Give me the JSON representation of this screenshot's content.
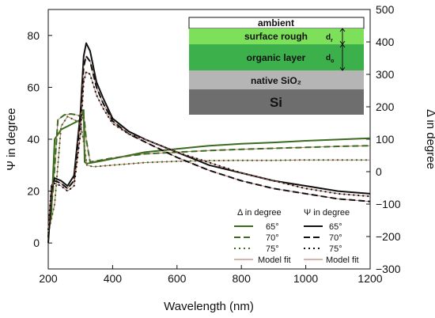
{
  "chart_data": {
    "type": "line",
    "xlabel": "Wavelength (nm)",
    "ylabel_left": "Ψ in degree",
    "ylabel_right": "Δ in degree",
    "xlim": [
      200,
      1200
    ],
    "ylim_left": [
      -10,
      90
    ],
    "ylim_right": [
      -300,
      500
    ],
    "x_ticks": [
      "200",
      "400",
      "600",
      "800",
      "1000",
      "1200"
    ],
    "y_left_ticks": [
      "0",
      "20",
      "40",
      "60",
      "80"
    ],
    "y_right_ticks": [
      "-300",
      "-200",
      "-100",
      "0",
      "100",
      "200",
      "300",
      "400",
      "500"
    ],
    "series": [
      {
        "name": "65°",
        "group": "Δ in degree",
        "axis": "right",
        "style": "solid",
        "color": "#3a6b1f",
        "x": [
          200,
          210,
          220,
          240,
          260,
          280,
          300,
          310,
          313,
          320,
          350,
          400,
          500,
          600,
          700,
          800,
          900,
          1000,
          1100,
          1200
        ],
        "y": [
          -200,
          -120,
          100,
          130,
          140,
          150,
          160,
          190,
          30,
          25,
          30,
          40,
          60,
          70,
          80,
          86,
          90,
          95,
          99,
          103
        ]
      },
      {
        "name": "70°",
        "group": "Δ in degree",
        "axis": "right",
        "style": "dashed",
        "color": "#3a6b1f",
        "x": [
          200,
          215,
          230,
          250,
          270,
          290,
          305,
          312,
          318,
          330,
          360,
          400,
          500,
          600,
          700,
          800,
          900,
          1000,
          1100,
          1200
        ],
        "y": [
          -180,
          -60,
          160,
          175,
          178,
          175,
          168,
          160,
          100,
          30,
          35,
          42,
          55,
          60,
          65,
          69,
          72,
          75,
          78,
          80
        ]
      },
      {
        "name": "75°",
        "group": "Δ in degree",
        "axis": "right",
        "style": "dotted",
        "color": "#3a6b1f",
        "x": [
          200,
          220,
          240,
          260,
          280,
          300,
          312,
          320,
          340,
          400,
          500,
          600,
          700,
          800,
          900,
          1000,
          1100,
          1200
        ],
        "y": [
          -190,
          -100,
          140,
          170,
          160,
          150,
          80,
          20,
          15,
          20,
          28,
          32,
          34,
          35,
          35,
          36,
          36,
          36
        ]
      },
      {
        "name": "65°",
        "group": "Ψ in degree",
        "axis": "left",
        "style": "solid",
        "color": "#111111",
        "x": [
          200,
          210,
          220,
          240,
          260,
          280,
          300,
          310,
          318,
          330,
          350,
          370,
          400,
          450,
          500,
          600,
          700,
          800,
          900,
          1000,
          1100,
          1200
        ],
        "y": [
          0,
          20,
          25,
          24,
          22,
          26,
          50,
          72,
          77,
          74,
          62,
          56,
          48,
          43,
          40,
          35,
          30,
          27,
          24,
          22,
          20,
          19
        ]
      },
      {
        "name": "70°",
        "group": "Ψ in degree",
        "axis": "left",
        "style": "dashed",
        "color": "#111111",
        "x": [
          200,
          210,
          220,
          240,
          260,
          280,
          300,
          310,
          318,
          330,
          350,
          370,
          400,
          450,
          500,
          600,
          700,
          800,
          900,
          1000,
          1100,
          1200
        ],
        "y": [
          2,
          22,
          24,
          23,
          21,
          24,
          48,
          68,
          72,
          70,
          60,
          54,
          47,
          42,
          39,
          33,
          28,
          24,
          21,
          19,
          17,
          16
        ]
      },
      {
        "name": "75°",
        "group": "Ψ in degree",
        "axis": "left",
        "style": "dotted",
        "color": "#111111",
        "x": [
          200,
          210,
          220,
          240,
          260,
          280,
          300,
          310,
          318,
          330,
          350,
          370,
          400,
          450,
          500,
          600,
          700,
          800,
          900,
          1000,
          1100,
          1200
        ],
        "y": [
          5,
          22,
          23,
          22,
          20,
          22,
          42,
          62,
          66,
          65,
          57,
          52,
          46,
          42,
          40,
          35,
          31,
          27,
          24,
          21,
          19,
          18
        ]
      }
    ],
    "model_fit_label": "Model fit",
    "legend": {
      "delta_title": "Δ in degree",
      "psi_title": "Ψ in degree",
      "labels": [
        "65°",
        "70°",
        "75°"
      ],
      "fit": "Model fit",
      "position": "bottom-right"
    },
    "inset": {
      "layers": [
        "ambient",
        "surface rough",
        "organic layer",
        "native SiO₂",
        "Si"
      ],
      "d_r": "d",
      "d_r_sub": "r",
      "d_o": "d",
      "d_o_sub": "o"
    },
    "colors": {
      "delta": "#3a6b1f",
      "psi": "#111111",
      "fit": "#b0665a",
      "surface_rough": "#7de05a",
      "organic_layer": "#3cb04a",
      "native_sio2": "#b5b5b5",
      "si": "#6e6e6e"
    }
  }
}
